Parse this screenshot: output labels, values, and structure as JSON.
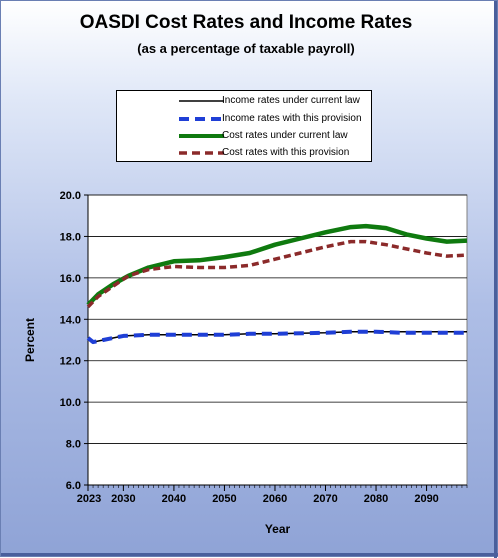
{
  "chart_data": {
    "type": "line",
    "title": "OASDI Cost Rates and Income Rates",
    "subtitle": "(as a percentage of taxable payroll)",
    "xlabel": "Year",
    "ylabel": "Percent",
    "xlim": [
      2023,
      2098
    ],
    "ylim": [
      6.0,
      20.0
    ],
    "x_ticks": [
      2023,
      2030,
      2040,
      2050,
      2060,
      2070,
      2080,
      2090
    ],
    "y_ticks": [
      "6.0",
      "8.0",
      "10.0",
      "12.0",
      "14.0",
      "16.0",
      "18.0",
      "20.0"
    ],
    "grid": "horizontal",
    "legend_position": "top",
    "series": [
      {
        "name": "Income rates under current law",
        "color": "#000000",
        "style": "solid",
        "x": [
          2023,
          2024,
          2026,
          2030,
          2035,
          2040,
          2050,
          2055,
          2060,
          2070,
          2075,
          2080,
          2085,
          2090,
          2095,
          2098
        ],
        "y": [
          13.1,
          12.9,
          13.0,
          13.2,
          13.25,
          13.25,
          13.25,
          13.3,
          13.3,
          13.35,
          13.4,
          13.4,
          13.4,
          13.4,
          13.4,
          13.4
        ]
      },
      {
        "name": "Income rates with this provision",
        "color": "#1f3fd6",
        "style": "dashed",
        "x": [
          2023,
          2024,
          2026,
          2030,
          2035,
          2040,
          2050,
          2055,
          2060,
          2070,
          2075,
          2080,
          2085,
          2090,
          2095,
          2098
        ],
        "y": [
          13.1,
          12.9,
          13.0,
          13.2,
          13.25,
          13.25,
          13.25,
          13.3,
          13.3,
          13.35,
          13.4,
          13.4,
          13.35,
          13.35,
          13.35,
          13.35
        ]
      },
      {
        "name": "Cost rates under current law",
        "color": "#0f7a0f",
        "style": "solid-thick",
        "x": [
          2023,
          2025,
          2028,
          2031,
          2035,
          2040,
          2045,
          2050,
          2055,
          2060,
          2065,
          2070,
          2075,
          2078,
          2082,
          2086,
          2090,
          2094,
          2098
        ],
        "y": [
          14.7,
          15.2,
          15.7,
          16.1,
          16.5,
          16.8,
          16.85,
          17.0,
          17.2,
          17.6,
          17.9,
          18.2,
          18.45,
          18.5,
          18.4,
          18.1,
          17.9,
          17.75,
          17.8
        ]
      },
      {
        "name": "Cost rates with this provision",
        "color": "#8b2a2a",
        "style": "dashed",
        "x": [
          2023,
          2025,
          2028,
          2031,
          2035,
          2040,
          2045,
          2050,
          2055,
          2060,
          2065,
          2070,
          2075,
          2078,
          2082,
          2086,
          2090,
          2094,
          2098
        ],
        "y": [
          14.6,
          15.1,
          15.6,
          16.1,
          16.4,
          16.55,
          16.5,
          16.5,
          16.6,
          16.9,
          17.2,
          17.5,
          17.75,
          17.75,
          17.6,
          17.4,
          17.2,
          17.05,
          17.1
        ]
      }
    ]
  }
}
